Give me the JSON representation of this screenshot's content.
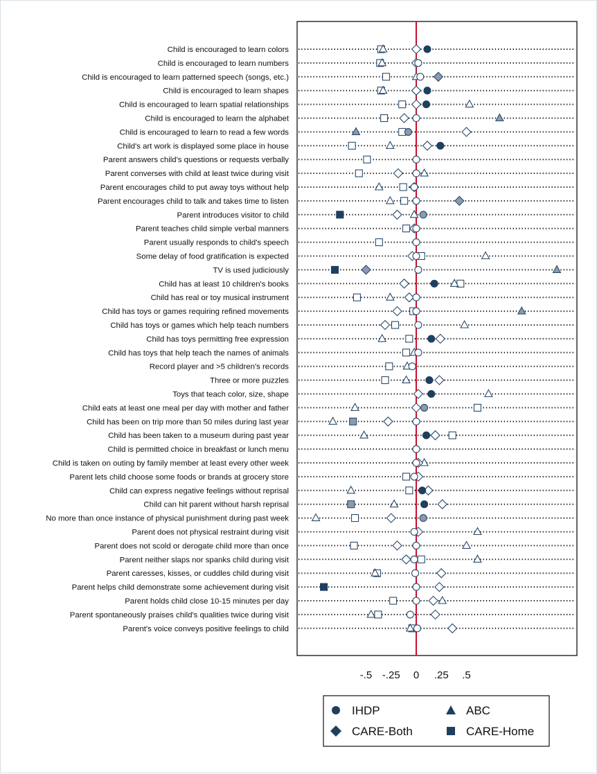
{
  "chart_data": {
    "type": "scatter",
    "orientation": "dot-plot",
    "x_ticks": [
      {
        "value": -0.5,
        "label": "-.5"
      },
      {
        "value": -0.25,
        "label": "-.25"
      },
      {
        "value": 0,
        "label": "0"
      },
      {
        "value": 0.25,
        "label": ".25"
      },
      {
        "value": 0.5,
        "label": ".5"
      }
    ],
    "xlim": [
      -1.2,
      1.6
    ],
    "reference_line": {
      "value": 0,
      "color": "#c8102e"
    },
    "legend_placement": "bottom",
    "colors": {
      "filled": "#1f3f5f",
      "gray": "#8a9bb0",
      "outline": "#2a4a6a",
      "hollow_fill": "#ffffff"
    },
    "series": [
      {
        "name": "IHDP",
        "marker": "circle"
      },
      {
        "name": "ABC",
        "marker": "triangle"
      },
      {
        "name": "CARE-Both",
        "marker": "diamond"
      },
      {
        "name": "CARE-Home",
        "marker": "square"
      }
    ],
    "items": [
      {
        "label": "Child is encouraged to learn colors",
        "ihdp": 0.11,
        "ihdp_fill": "filled",
        "abc": -0.33,
        "abc_fill": "hollow",
        "both": 0.0,
        "both_fill": "hollow",
        "home": -0.35,
        "home_fill": "hollow"
      },
      {
        "label": "Child is encouraged to learn numbers",
        "ihdp": 0.02,
        "ihdp_fill": "hollow",
        "abc": -0.34,
        "abc_fill": "hollow",
        "both": 0.0,
        "both_fill": "hollow",
        "home": -0.36,
        "home_fill": "hollow"
      },
      {
        "label": "Child is encouraged to learn patterned speech (songs, etc.)",
        "ihdp": 0.04,
        "ihdp_fill": "hollow",
        "abc": -0.0,
        "abc_fill": "hollow",
        "both": 0.22,
        "both_fill": "gray",
        "home": -0.3,
        "home_fill": "hollow"
      },
      {
        "label": "Child is encouraged to learn shapes",
        "ihdp": 0.11,
        "ihdp_fill": "filled",
        "abc": -0.33,
        "abc_fill": "hollow",
        "both": 0.0,
        "both_fill": "hollow",
        "home": -0.35,
        "home_fill": "hollow"
      },
      {
        "label": "Child is encouraged to learn spatial relationships",
        "ihdp": 0.1,
        "ihdp_fill": "filled",
        "abc": 0.53,
        "abc_fill": "hollow",
        "both": 0.0,
        "both_fill": "hollow",
        "home": -0.14,
        "home_fill": "hollow"
      },
      {
        "label": "Child is encouraged to learn the alphabet",
        "ihdp": 0.0,
        "ihdp_fill": "hollow",
        "abc": 0.83,
        "abc_fill": "gray",
        "both": -0.12,
        "both_fill": "hollow",
        "home": -0.32,
        "home_fill": "hollow"
      },
      {
        "label": "Child is encouraged to learn to read a few words",
        "ihdp": -0.08,
        "ihdp_fill": "gray",
        "abc": -0.6,
        "abc_fill": "gray",
        "both": 0.5,
        "both_fill": "hollow",
        "home": -0.14,
        "home_fill": "hollow"
      },
      {
        "label": "Child's art work is displayed some place in house",
        "ihdp": 0.24,
        "ihdp_fill": "filled",
        "abc": -0.26,
        "abc_fill": "hollow",
        "both": 0.11,
        "both_fill": "hollow",
        "home": -0.64,
        "home_fill": "hollow"
      },
      {
        "label": "Parent answers child's questions or requests verbally",
        "ihdp": 0.0,
        "ihdp_fill": "hollow",
        "abc": null,
        "abc_fill": "hollow",
        "both": null,
        "both_fill": "hollow",
        "home": -0.49,
        "home_fill": "hollow"
      },
      {
        "label": "Parent converses with child at least twice during visit",
        "ihdp": 0.0,
        "ihdp_fill": "hollow",
        "abc": 0.08,
        "abc_fill": "hollow",
        "both": -0.18,
        "both_fill": "hollow",
        "home": -0.57,
        "home_fill": "hollow"
      },
      {
        "label": "Parent encourages child to put away toys without help",
        "ihdp": -0.02,
        "ihdp_fill": "hollow",
        "abc": -0.37,
        "abc_fill": "hollow",
        "both": -0.02,
        "both_fill": "hollow",
        "home": -0.13,
        "home_fill": "hollow"
      },
      {
        "label": "Parent encourages child to talk and takes time to listen",
        "ihdp": 0.0,
        "ihdp_fill": "hollow",
        "abc": -0.26,
        "abc_fill": "hollow",
        "both": 0.43,
        "both_fill": "gray",
        "home": -0.12,
        "home_fill": "hollow"
      },
      {
        "label": "Parent introduces visitor to child",
        "ihdp": 0.07,
        "ihdp_fill": "gray",
        "abc": -0.02,
        "abc_fill": "hollow",
        "both": -0.19,
        "both_fill": "hollow",
        "home": -0.76,
        "home_fill": "filled"
      },
      {
        "label": "Parent teaches child simple verbal manners",
        "ihdp": 0.0,
        "ihdp_fill": "hollow",
        "abc": null,
        "abc_fill": "hollow",
        "both": -0.02,
        "both_fill": "hollow",
        "home": -0.1,
        "home_fill": "hollow"
      },
      {
        "label": "Parent usually responds to child's speech",
        "ihdp": 0.0,
        "ihdp_fill": "hollow",
        "abc": null,
        "abc_fill": "hollow",
        "both": null,
        "both_fill": "hollow",
        "home": -0.37,
        "home_fill": "hollow"
      },
      {
        "label": "Some delay of food gratification is expected",
        "ihdp": 0.0,
        "ihdp_fill": "hollow",
        "abc": 0.69,
        "abc_fill": "hollow",
        "both": -0.04,
        "both_fill": "hollow",
        "home": 0.05,
        "home_fill": "hollow"
      },
      {
        "label": "TV is used judiciously",
        "ihdp": 0.02,
        "ihdp_fill": "hollow",
        "abc": 1.4,
        "abc_fill": "gray",
        "both": -0.5,
        "both_fill": "gray",
        "home": -0.81,
        "home_fill": "filled"
      },
      {
        "label": "Child has at least 10 children's books",
        "ihdp": 0.18,
        "ihdp_fill": "filled",
        "abc": 0.38,
        "abc_fill": "hollow",
        "both": -0.12,
        "both_fill": "hollow",
        "home": 0.44,
        "home_fill": "hollow"
      },
      {
        "label": "Child has real or toy musical instrument",
        "ihdp": 0.0,
        "ihdp_fill": "hollow",
        "abc": -0.26,
        "abc_fill": "hollow",
        "both": -0.07,
        "both_fill": "hollow",
        "home": -0.59,
        "home_fill": "hollow"
      },
      {
        "label": "Child has toys or games requiring refined movements",
        "ihdp": 0.0,
        "ihdp_fill": "hollow",
        "abc": 1.05,
        "abc_fill": "gray",
        "both": -0.19,
        "both_fill": "hollow",
        "home": -0.03,
        "home_fill": "hollow"
      },
      {
        "label": "Child has toys or games which help teach numbers",
        "ihdp": 0.02,
        "ihdp_fill": "hollow",
        "abc": 0.48,
        "abc_fill": "hollow",
        "both": -0.31,
        "both_fill": "hollow",
        "home": -0.21,
        "home_fill": "hollow"
      },
      {
        "label": "Child has toys permitting free expression",
        "ihdp": 0.15,
        "ihdp_fill": "filled",
        "abc": -0.34,
        "abc_fill": "hollow",
        "both": 0.24,
        "both_fill": "hollow",
        "home": -0.07,
        "home_fill": "hollow"
      },
      {
        "label": "Child has toys that help teach the names of animals",
        "ihdp": 0.02,
        "ihdp_fill": "hollow",
        "abc": -0.02,
        "abc_fill": "hollow",
        "both": null,
        "both_fill": "hollow",
        "home": -0.1,
        "home_fill": "hollow"
      },
      {
        "label": "Record player and >5 children's records",
        "ihdp": -0.04,
        "ihdp_fill": "hollow",
        "abc": -0.09,
        "abc_fill": "hollow",
        "both": null,
        "both_fill": "hollow",
        "home": -0.27,
        "home_fill": "hollow"
      },
      {
        "label": "Three or more puzzles",
        "ihdp": 0.13,
        "ihdp_fill": "filled",
        "abc": -0.1,
        "abc_fill": "hollow",
        "both": 0.23,
        "both_fill": "hollow",
        "home": -0.31,
        "home_fill": "hollow"
      },
      {
        "label": "Toys that teach color, size, shape",
        "ihdp": 0.15,
        "ihdp_fill": "filled",
        "abc": 0.72,
        "abc_fill": "hollow",
        "both": 0.02,
        "both_fill": "hollow",
        "home": null,
        "home_fill": "hollow"
      },
      {
        "label": "Child eats at least one meal per day with mother and father",
        "ihdp": 0.08,
        "ihdp_fill": "gray",
        "abc": -0.61,
        "abc_fill": "hollow",
        "both": 0.0,
        "both_fill": "hollow",
        "home": 0.61,
        "home_fill": "hollow"
      },
      {
        "label": "Child has been on trip more than 50 miles during last year",
        "ihdp": 0.0,
        "ihdp_fill": "hollow",
        "abc": -0.83,
        "abc_fill": "hollow",
        "both": -0.28,
        "both_fill": "hollow",
        "home": -0.63,
        "home_fill": "gray"
      },
      {
        "label": "Child has been taken to a museum during past year",
        "ihdp": 0.1,
        "ihdp_fill": "filled",
        "abc": -0.52,
        "abc_fill": "hollow",
        "both": 0.19,
        "both_fill": "hollow",
        "home": 0.36,
        "home_fill": "hollow"
      },
      {
        "label": "Child is permitted choice in breakfast or lunch menu",
        "ihdp": 0.0,
        "ihdp_fill": "hollow",
        "abc": null,
        "abc_fill": "hollow",
        "both": null,
        "both_fill": "hollow",
        "home": null,
        "home_fill": "hollow"
      },
      {
        "label": "Child is taken on outing by family member at least every other week",
        "ihdp": 0.0,
        "ihdp_fill": "hollow",
        "abc": 0.08,
        "abc_fill": "hollow",
        "both": 0.02,
        "both_fill": "hollow",
        "home": null,
        "home_fill": "hollow"
      },
      {
        "label": "Parent lets child choose some foods or brands at grocery store",
        "ihdp": -0.02,
        "ihdp_fill": "hollow",
        "abc": null,
        "abc_fill": "hollow",
        "both": 0.02,
        "both_fill": "hollow",
        "home": -0.1,
        "home_fill": "hollow"
      },
      {
        "label": "Child can express negative feelings without reprisal",
        "ihdp": 0.06,
        "ihdp_fill": "filled",
        "abc": -0.65,
        "abc_fill": "hollow",
        "both": 0.12,
        "both_fill": "hollow",
        "home": -0.07,
        "home_fill": "hollow"
      },
      {
        "label": "Child can hit parent without harsh reprisal",
        "ihdp": 0.08,
        "ihdp_fill": "filled",
        "abc": -0.22,
        "abc_fill": "hollow",
        "both": 0.26,
        "both_fill": "hollow",
        "home": -0.65,
        "home_fill": "gray"
      },
      {
        "label": "No more than once instance of physical punishment during past week",
        "ihdp": 0.07,
        "ihdp_fill": "gray",
        "abc": -1.0,
        "abc_fill": "hollow",
        "both": -0.25,
        "both_fill": "hollow",
        "home": -0.61,
        "home_fill": "hollow"
      },
      {
        "label": "Parent does not physical restraint during visit",
        "ihdp": -0.02,
        "ihdp_fill": "hollow",
        "abc": 0.61,
        "abc_fill": "hollow",
        "both": 0.02,
        "both_fill": "hollow",
        "home": null,
        "home_fill": "hollow"
      },
      {
        "label": "Parent does not scold or derogate child more than once",
        "ihdp": 0.0,
        "ihdp_fill": "hollow",
        "abc": 0.5,
        "abc_fill": "hollow",
        "both": -0.19,
        "both_fill": "hollow",
        "home": -0.62,
        "home_fill": "hollow"
      },
      {
        "label": "Parent neither slaps nor spanks child during visit",
        "ihdp": -0.02,
        "ihdp_fill": "hollow",
        "abc": 0.61,
        "abc_fill": "hollow",
        "both": -0.1,
        "both_fill": "hollow",
        "home": 0.05,
        "home_fill": "hollow"
      },
      {
        "label": "Parent caresses, kisses, or cuddles child during visit",
        "ihdp": -0.01,
        "ihdp_fill": "hollow",
        "abc": -0.41,
        "abc_fill": "hollow",
        "both": 0.25,
        "both_fill": "hollow",
        "home": -0.39,
        "home_fill": "hollow"
      },
      {
        "label": "Parent helps child demonstrate some achievement during visit",
        "ihdp": 0.0,
        "ihdp_fill": "hollow",
        "abc": null,
        "abc_fill": "hollow",
        "both": 0.23,
        "both_fill": "hollow",
        "home": -0.92,
        "home_fill": "filled"
      },
      {
        "label": "Parent holds child close 10-15 minutes per day",
        "ihdp": 0.0,
        "ihdp_fill": "hollow",
        "abc": 0.26,
        "abc_fill": "hollow",
        "both": 0.17,
        "both_fill": "hollow",
        "home": -0.23,
        "home_fill": "hollow"
      },
      {
        "label": "Parent spontaneously praises child's qualities twice during visit",
        "ihdp": -0.06,
        "ihdp_fill": "hollow",
        "abc": -0.45,
        "abc_fill": "hollow",
        "both": 0.19,
        "both_fill": "hollow",
        "home": -0.38,
        "home_fill": "hollow"
      },
      {
        "label": "Parent's voice conveys positive feelings to child",
        "ihdp": 0.01,
        "ihdp_fill": "hollow",
        "abc": -0.06,
        "abc_fill": "hollow",
        "both": 0.36,
        "both_fill": "hollow",
        "home": -0.04,
        "home_fill": "hollow"
      }
    ]
  }
}
